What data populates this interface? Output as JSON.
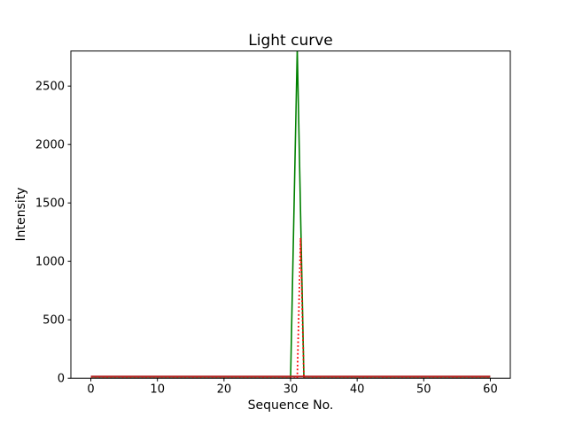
{
  "chart_data": {
    "type": "line",
    "title": "Light curve",
    "xlabel": "Sequence No.",
    "ylabel": "Intensity",
    "xlim": [
      -3,
      63
    ],
    "ylim": [
      0,
      2800
    ],
    "xticks": [
      0,
      10,
      20,
      30,
      40,
      50,
      60
    ],
    "yticks": [
      0,
      500,
      1000,
      1500,
      2000,
      2500
    ],
    "grid": false,
    "legend": null,
    "series": [
      {
        "name": "green-solid-peak",
        "color": "#008000",
        "line_style": "solid",
        "line_width": 1.6,
        "x": [
          0,
          1,
          2,
          3,
          4,
          5,
          6,
          7,
          8,
          9,
          10,
          11,
          12,
          13,
          14,
          15,
          16,
          17,
          18,
          19,
          20,
          21,
          22,
          23,
          24,
          25,
          26,
          27,
          28,
          29,
          30,
          31,
          32,
          33,
          34,
          35,
          36,
          37,
          38,
          39,
          40,
          41,
          42,
          43,
          44,
          45,
          46,
          47,
          48,
          49,
          50,
          51,
          52,
          53,
          54,
          55,
          56,
          57,
          58,
          59,
          60
        ],
        "y": [
          0,
          0,
          0,
          0,
          0,
          0,
          0,
          0,
          0,
          0,
          0,
          0,
          0,
          0,
          0,
          0,
          0,
          0,
          0,
          0,
          0,
          0,
          0,
          0,
          0,
          0,
          0,
          0,
          0,
          0,
          0,
          2820,
          0,
          0,
          0,
          0,
          0,
          0,
          0,
          0,
          0,
          0,
          0,
          0,
          0,
          0,
          0,
          0,
          0,
          0,
          0,
          0,
          0,
          0,
          0,
          0,
          0,
          0,
          0,
          0,
          0
        ]
      },
      {
        "name": "red-solid-baseline",
        "color": "#b22222",
        "line_style": "solid",
        "line_width": 2,
        "x": [
          0,
          1,
          2,
          3,
          4,
          5,
          6,
          7,
          8,
          9,
          10,
          11,
          12,
          13,
          14,
          15,
          16,
          17,
          18,
          19,
          20,
          21,
          22,
          23,
          24,
          25,
          26,
          27,
          28,
          29,
          30,
          31,
          32,
          33,
          34,
          35,
          36,
          37,
          38,
          39,
          40,
          41,
          42,
          43,
          44,
          45,
          46,
          47,
          48,
          49,
          50,
          51,
          52,
          53,
          54,
          55,
          56,
          57,
          58,
          59,
          60
        ],
        "y": [
          15,
          15,
          15,
          15,
          15,
          15,
          15,
          15,
          15,
          15,
          15,
          15,
          15,
          15,
          15,
          15,
          15,
          15,
          15,
          15,
          15,
          15,
          15,
          15,
          15,
          15,
          15,
          15,
          15,
          15,
          15,
          15,
          15,
          15,
          15,
          15,
          15,
          15,
          15,
          15,
          15,
          15,
          15,
          15,
          15,
          15,
          15,
          15,
          15,
          15,
          15,
          15,
          15,
          15,
          15,
          15,
          15,
          15,
          15,
          15,
          15
        ]
      },
      {
        "name": "red-dotted-peak",
        "color": "#ff0000",
        "line_style": "dotted",
        "line_width": 1.8,
        "x": [
          0,
          1,
          2,
          3,
          4,
          5,
          6,
          7,
          8,
          9,
          10,
          11,
          12,
          13,
          14,
          15,
          16,
          17,
          18,
          19,
          20,
          21,
          22,
          23,
          24,
          25,
          26,
          27,
          28,
          29,
          30,
          31,
          31.5,
          32,
          33,
          34,
          35,
          36,
          37,
          38,
          39,
          40,
          41,
          42,
          43,
          44,
          45,
          46,
          47,
          48,
          49,
          50,
          51,
          52,
          53,
          54,
          55,
          56,
          57,
          58,
          59,
          60
        ],
        "y": [
          0,
          0,
          0,
          0,
          0,
          0,
          0,
          0,
          0,
          0,
          0,
          0,
          0,
          0,
          0,
          0,
          0,
          0,
          0,
          0,
          0,
          0,
          0,
          0,
          0,
          0,
          0,
          0,
          0,
          0,
          0,
          0,
          1200,
          0,
          0,
          0,
          0,
          0,
          0,
          0,
          0,
          0,
          0,
          0,
          0,
          0,
          0,
          0,
          0,
          0,
          0,
          0,
          0,
          0,
          0,
          0,
          0,
          0,
          0,
          0,
          0,
          0
        ]
      }
    ]
  }
}
